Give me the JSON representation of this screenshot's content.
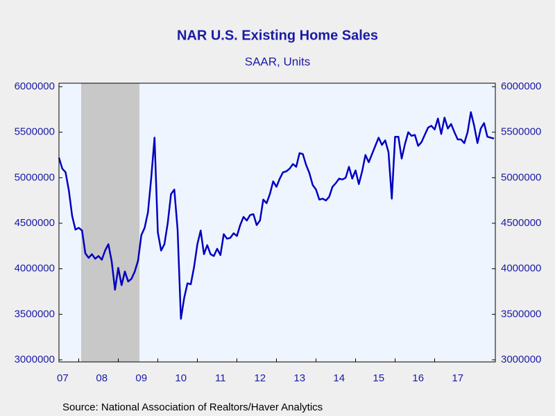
{
  "chart_data": {
    "type": "line",
    "title": "NAR U.S. Existing Home Sales",
    "subtitle": "SAAR, Units",
    "source": "Source:  National Association of Realtors/Haver Analytics",
    "color": "#0000c0",
    "ylim": [
      2977000,
      6038000
    ],
    "yticks": [
      3000000,
      3500000,
      4000000,
      4500000,
      5000000,
      5500000,
      6000000
    ],
    "categories": [
      "07",
      null,
      null,
      null,
      null,
      null,
      "08",
      null,
      null,
      null,
      null,
      null,
      null,
      null,
      null,
      null,
      null,
      null,
      "09",
      null,
      null,
      null,
      null,
      null,
      null,
      null,
      null,
      null,
      null,
      null,
      "10",
      null,
      null,
      null,
      null,
      null,
      null,
      null,
      null,
      null,
      null,
      null,
      "11",
      null,
      null,
      null,
      null,
      null,
      null,
      null,
      null,
      null,
      null,
      null,
      "12",
      null,
      null,
      null,
      null,
      null,
      null,
      null,
      null,
      null,
      null,
      null,
      "13",
      null,
      null,
      null,
      null,
      null,
      null,
      null,
      null,
      null,
      null,
      null,
      "14",
      null,
      null,
      null,
      null,
      null,
      null,
      null,
      null,
      null,
      null,
      null,
      "15",
      null,
      null,
      null,
      null,
      null,
      null,
      null,
      null,
      null,
      null,
      null,
      "16",
      null,
      null,
      null,
      null,
      null,
      null,
      null,
      null,
      null,
      null,
      null,
      "17",
      null,
      null,
      null,
      null,
      null,
      null,
      null,
      null,
      null,
      null,
      null,
      null,
      null,
      null,
      null,
      null,
      null,
      null
    ],
    "values": [
      5220000,
      5100000,
      5060000,
      4860000,
      4580000,
      4430000,
      4450000,
      4420000,
      4170000,
      4120000,
      4160000,
      4110000,
      4140000,
      4100000,
      4200000,
      4270000,
      4080000,
      3770000,
      4010000,
      3820000,
      3970000,
      3860000,
      3890000,
      3970000,
      4090000,
      4370000,
      4450000,
      4620000,
      5000000,
      5440000,
      4400000,
      4200000,
      4270000,
      4500000,
      4820000,
      4870000,
      4430000,
      3450000,
      3680000,
      3840000,
      3830000,
      4020000,
      4270000,
      4420000,
      4160000,
      4260000,
      4160000,
      4140000,
      4220000,
      4150000,
      4380000,
      4330000,
      4340000,
      4390000,
      4360000,
      4480000,
      4570000,
      4530000,
      4590000,
      4600000,
      4480000,
      4530000,
      4760000,
      4720000,
      4820000,
      4960000,
      4900000,
      4990000,
      5060000,
      5070000,
      5100000,
      5150000,
      5120000,
      5270000,
      5260000,
      5140000,
      5050000,
      4920000,
      4870000,
      4760000,
      4770000,
      4750000,
      4790000,
      4900000,
      4940000,
      4990000,
      4980000,
      5000000,
      5120000,
      4990000,
      5080000,
      4930000,
      5070000,
      5250000,
      5170000,
      5260000,
      5350000,
      5440000,
      5360000,
      5410000,
      5280000,
      4770000,
      5450000,
      5450000,
      5210000,
      5370000,
      5500000,
      5460000,
      5470000,
      5350000,
      5390000,
      5470000,
      5550000,
      5570000,
      5530000,
      5650000,
      5480000,
      5660000,
      5540000,
      5590000,
      5500000,
      5420000,
      5420000,
      5380000,
      5500000,
      5720000,
      5570000,
      5380000,
      5540000,
      5600000,
      5450000,
      5440000,
      5430000
    ]
  }
}
